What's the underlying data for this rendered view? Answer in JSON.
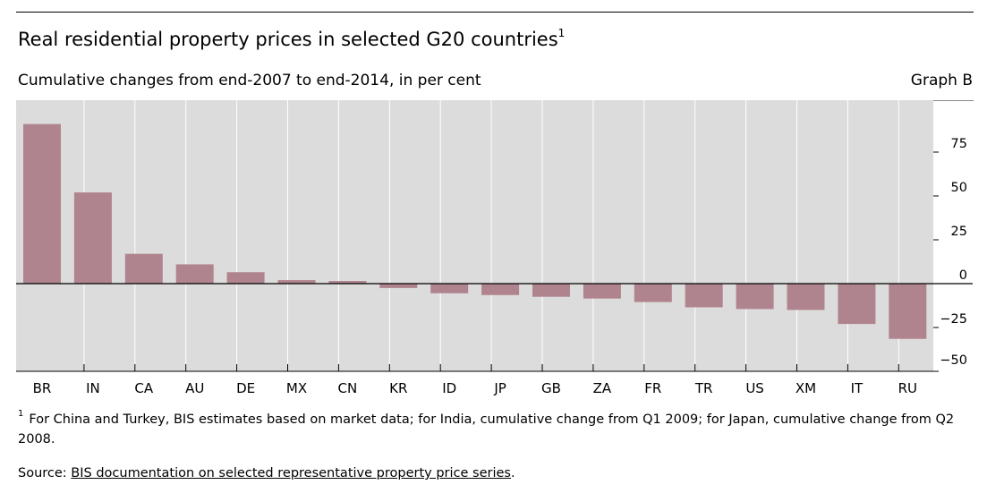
{
  "header": {
    "title": "Real residential property prices in selected G20 countries",
    "title_note": "1",
    "subtitle": "Cumulative changes from end-2007 to end-2014, in per cent",
    "graph_label": "Graph B"
  },
  "chart_data": {
    "type": "bar",
    "title": "Real residential property prices in selected G20 countries",
    "subtitle": "Cumulative changes from end-2007 to end-2014, in per cent",
    "categories": [
      "BR",
      "IN",
      "CA",
      "AU",
      "DE",
      "MX",
      "CN",
      "KR",
      "ID",
      "JP",
      "GB",
      "ZA",
      "FR",
      "TR",
      "US",
      "XM",
      "IT",
      "RU"
    ],
    "values": [
      91,
      52,
      17,
      11,
      6.5,
      2,
      1.5,
      -2.5,
      -5.5,
      -6.5,
      -7.5,
      -8.5,
      -10.5,
      -13.5,
      -14.5,
      -15,
      -23,
      -31.5
    ],
    "ylim": [
      -50,
      100
    ],
    "yticks": [
      -50,
      -25,
      0,
      25,
      50,
      75
    ],
    "ytick_labels": [
      "−50",
      "−25",
      "0",
      "25",
      "50",
      "75"
    ],
    "yaxis_side": "right",
    "grid": "vertical",
    "colors": {
      "bar": "#b0848e",
      "background": "#dcdcdc",
      "grid": "#ffffff",
      "axis": "#000000"
    }
  },
  "footnote": {
    "marker": "1",
    "text": "For China and Turkey, BIS estimates based on market data; for India, cumulative change from Q1 2009; for Japan, cumulative change from Q2 2008."
  },
  "source": {
    "prefix": "Source: ",
    "link_text": "BIS documentation on selected representative property price series",
    "suffix": "."
  }
}
